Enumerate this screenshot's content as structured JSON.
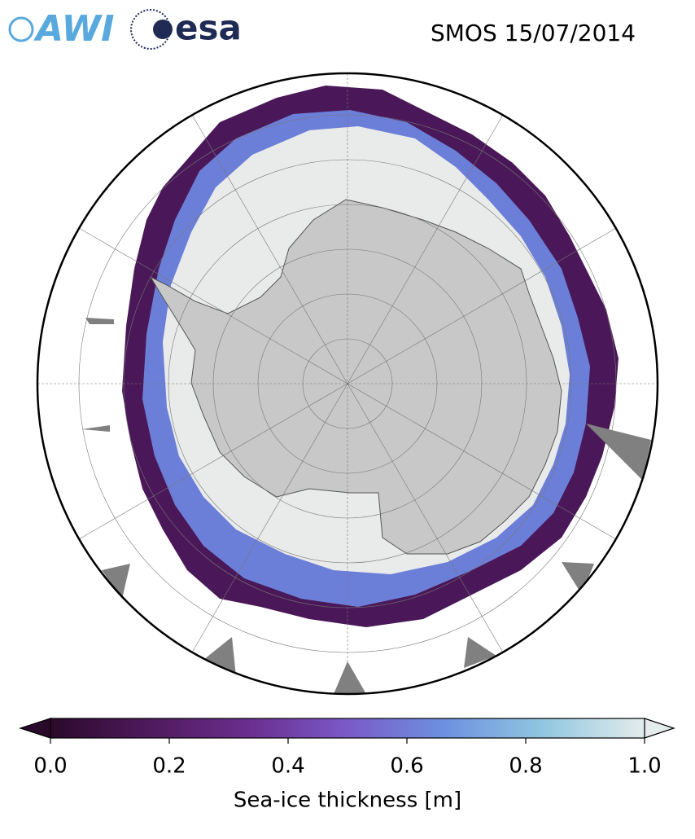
{
  "header": {
    "logos": [
      "AWI",
      "esa"
    ],
    "title": "SMOS 15/07/2014"
  },
  "colorbar": {
    "label": "Sea-ice thickness [m]",
    "lim": [
      0,
      1
    ],
    "ticks": [
      {
        "value": 0,
        "label": "0.0"
      },
      {
        "value": 0.2,
        "label": "0.2"
      },
      {
        "value": 0.4,
        "label": "0.4"
      },
      {
        "value": 0.6,
        "label": "0.6"
      },
      {
        "value": 0.8,
        "label": "0.8"
      },
      {
        "value": 1,
        "label": "1.0"
      }
    ],
    "colors": [
      "#2a0a2b",
      "#4f1a5c",
      "#6a2e8e",
      "#7a5ac8",
      "#6d92e0",
      "#92c8e0",
      "#e4ecec"
    ]
  }
}
